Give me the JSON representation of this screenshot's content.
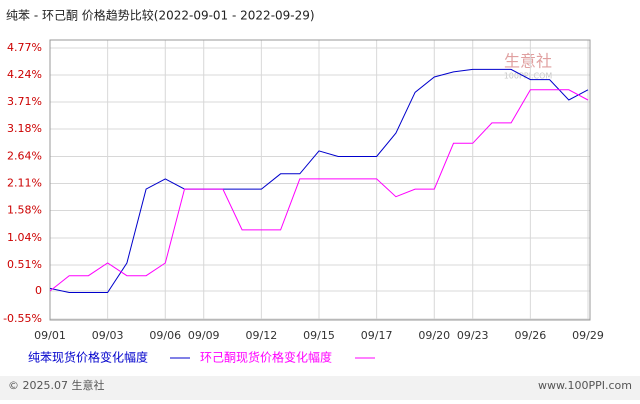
{
  "chart_data": {
    "type": "line",
    "title": "纯苯 - 环己酮 价格趋势比较(2022-09-01 - 2022-09-29)",
    "watermark": "生意社",
    "watermark_sub": "100PPI.COM",
    "categories": [
      "09/01",
      null,
      null,
      "09/03",
      null,
      null,
      "09/06",
      null,
      "09/09",
      null,
      null,
      "09/12",
      null,
      null,
      "09/15",
      null,
      null,
      "09/17",
      null,
      null,
      "09/20",
      null,
      "09/23",
      null,
      null,
      "09/26",
      null,
      null,
      "09/29"
    ],
    "series": [
      {
        "name": "纯苯现货价格变化幅度",
        "color": "#0000cc",
        "values": [
          0.05,
          -0.03,
          -0.03,
          -0.03,
          0.55,
          2.0,
          2.2,
          2.0,
          2.0,
          2.0,
          2.0,
          2.0,
          2.3,
          2.3,
          2.75,
          2.64,
          2.64,
          2.64,
          3.1,
          3.9,
          4.2,
          4.3,
          4.35,
          4.35,
          4.35,
          4.15,
          4.15,
          3.75,
          3.95
        ]
      },
      {
        "name": "环己酮现货价格变化幅度",
        "color": "#ff00ff",
        "values": [
          0,
          0.3,
          0.3,
          0.55,
          0.3,
          0.3,
          0.55,
          2.0,
          2.0,
          2.0,
          1.2,
          1.2,
          1.2,
          2.2,
          2.2,
          2.2,
          2.2,
          2.2,
          1.85,
          2.0,
          2.0,
          2.9,
          2.9,
          3.3,
          3.3,
          3.95,
          3.95,
          3.95,
          3.75
        ]
      }
    ],
    "ylim": [
      -0.55,
      4.77
    ],
    "yticks": [
      {
        "value": 4.77,
        "label": "4.77%"
      },
      {
        "value": 4.24,
        "label": "4.24%"
      },
      {
        "value": 3.71,
        "label": "3.71%"
      },
      {
        "value": 3.18,
        "label": "3.18%"
      },
      {
        "value": 2.64,
        "label": "2.64%"
      },
      {
        "value": 2.11,
        "label": "2.11%"
      },
      {
        "value": 1.58,
        "label": "1.58%"
      },
      {
        "value": 1.04,
        "label": "1.04%"
      },
      {
        "value": 0.51,
        "label": "0.51%"
      },
      0,
      {
        "value": -0.55,
        "label": "-0.55%"
      }
    ],
    "grid": true,
    "footer_left": "© 2025.07 生意社",
    "footer_right": "www.100PPI.com"
  }
}
